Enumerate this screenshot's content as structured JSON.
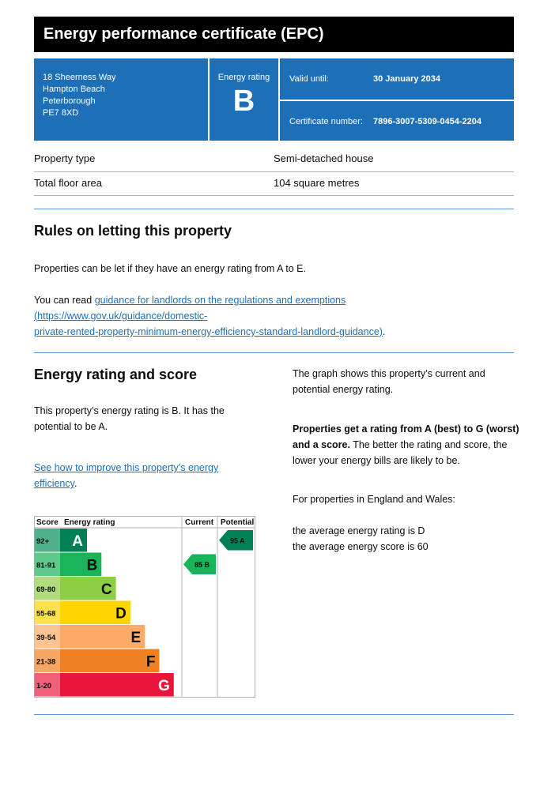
{
  "header": {
    "title": "Energy performance certificate (EPC)"
  },
  "address": {
    "line1": "18 Sheerness Way",
    "line2": "Hampton Beach",
    "line3": "Peterborough",
    "line4": "PE7 8XD"
  },
  "rating_box": {
    "label": "Energy rating",
    "letter": "B"
  },
  "valid": {
    "label": "Valid until:",
    "value": "30 January 2034"
  },
  "certificate": {
    "label": "Certificate number:",
    "value": "7896-3007-5309-0454-2204"
  },
  "property": {
    "type_label": "Property type",
    "type_value": "Semi-detached house",
    "area_label": "Total floor area",
    "area_value": "104 square metres"
  },
  "letting": {
    "heading": "Rules on letting this property",
    "para1": "Properties can be let if they have an energy rating from A to E.",
    "para2_prefix": "You can read ",
    "link_text": "guidance for landlords on the regulations and exemptions",
    "link_url_line1": " (https://www.gov.uk/guidance/domestic-",
    "link_url_line2": "private-rented-property-minimum-energy-efficiency-standard-landlord-guidance)",
    "para2_suffix": "."
  },
  "energy": {
    "heading": "Energy rating and score",
    "para1_line1": "This property’s energy rating is B. It has the",
    "para1_line2": "potential to be A.",
    "improve_link_line1": "See how to improve this property’s energy",
    "improve_link_line2": "efficiency",
    "improve_suffix": ".",
    "right_para1_line1": "The graph shows this property’s current and",
    "right_para1_line2": "potential energy rating.",
    "right_bold_line1": "Properties get a rating from A (best) to G (worst)",
    "right_bold_line2": "and a score.",
    "right_para2_rest_line1": " The better the rating and score, the",
    "right_para2_line2": "lower your energy bills are likely to be.",
    "right_para3": "For properties in England and Wales:",
    "right_avg1": "the average energy rating is D",
    "right_avg2": "the average energy score is 60"
  },
  "chart_data": {
    "type": "table",
    "headers": {
      "score": "Score",
      "rating": "Energy rating",
      "current": "Current",
      "potential": "Potential"
    },
    "bands": [
      {
        "score": "92+",
        "letter": "A",
        "color": "#008054",
        "scorebg": "#4fb08b"
      },
      {
        "score": "81-91",
        "letter": "B",
        "color": "#19b459",
        "scorebg": "#5dc98a"
      },
      {
        "score": "69-80",
        "letter": "C",
        "color": "#8dce46",
        "scorebg": "#b0dc7e"
      },
      {
        "score": "55-68",
        "letter": "D",
        "color": "#ffd500",
        "scorebg": "#ffe24d"
      },
      {
        "score": "39-54",
        "letter": "E",
        "color": "#fcaa65",
        "scorebg": "#fdc493"
      },
      {
        "score": "21-38",
        "letter": "F",
        "color": "#ef8023",
        "scorebg": "#f4a665"
      },
      {
        "score": "1-20",
        "letter": "G",
        "color": "#e9153b",
        "scorebg": "#f0607b"
      }
    ],
    "current": {
      "score": 85,
      "letter": "B",
      "label": "85 B",
      "color": "#19b459"
    },
    "potential": {
      "score": 95,
      "letter": "A",
      "label": "95 A",
      "color": "#008054"
    }
  }
}
